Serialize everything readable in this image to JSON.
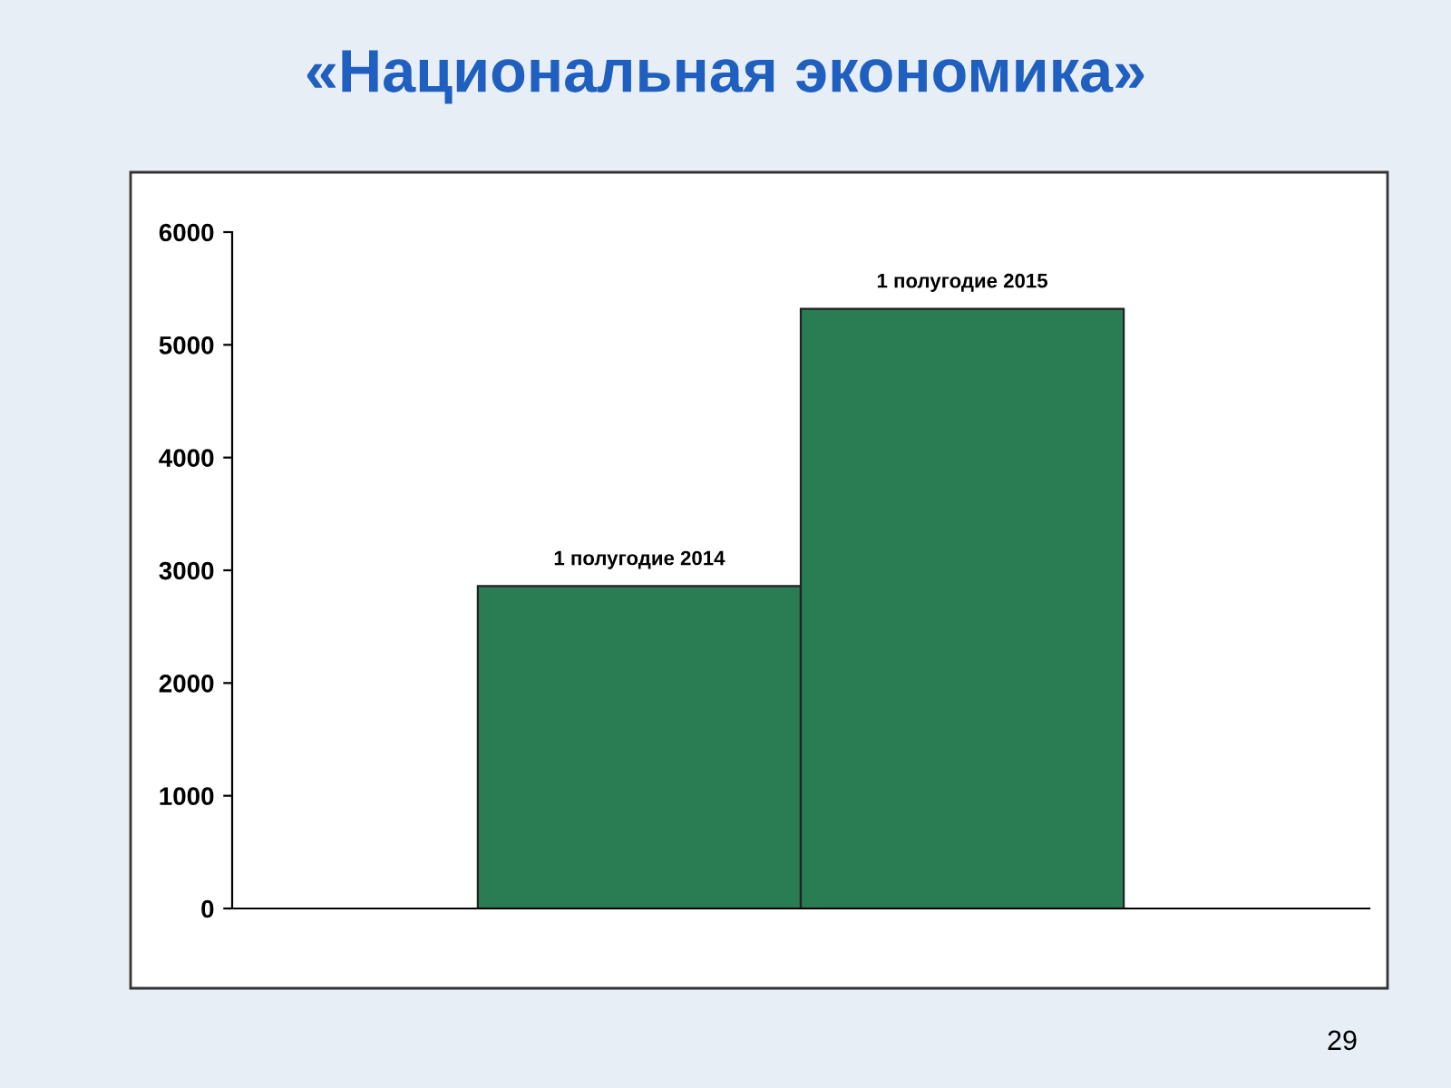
{
  "chart_data": {
    "type": "bar",
    "title": "«Национальная экономика»",
    "categories": [
      null
    ],
    "series": [
      {
        "name": "1 полугодие 2014",
        "color": "#2a7d52",
        "values": [
          2860
        ]
      },
      {
        "name": "1 полугодие 2015",
        "color": "#2a7d52",
        "values": [
          5320
        ]
      }
    ],
    "ylim": [
      0,
      6000
    ],
    "yticks": [
      0,
      1000,
      2000,
      3000,
      4000,
      5000,
      6000
    ],
    "grid": false,
    "legend": false,
    "annotations": [
      "29"
    ]
  }
}
